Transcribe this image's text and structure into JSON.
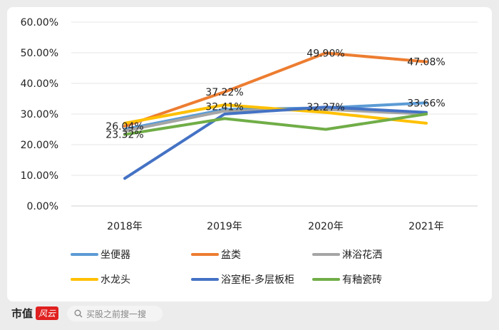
{
  "chart_data": {
    "type": "line",
    "categories": [
      "2018年",
      "2019年",
      "2020年",
      "2021年"
    ],
    "y_ticks": [
      "0.00%",
      "10.00%",
      "20.00%",
      "30.00%",
      "40.00%",
      "50.00%",
      "60.00%"
    ],
    "ylim": [
      0,
      60
    ],
    "grid": true,
    "legend_position": "bottom",
    "series": [
      {
        "name": "坐便器",
        "color": "#5b9bd5",
        "values": [
          25.0,
          31.5,
          32.0,
          33.66
        ]
      },
      {
        "name": "盆类",
        "color": "#ed7d31",
        "values": [
          26.04,
          37.22,
          49.9,
          47.08
        ]
      },
      {
        "name": "淋浴花洒",
        "color": "#a5a5a5",
        "values": [
          24.5,
          31.0,
          31.5,
          30.0
        ]
      },
      {
        "name": "水龙头",
        "color": "#ffc000",
        "values": [
          27.0,
          33.0,
          30.5,
          27.0
        ]
      },
      {
        "name": "浴室柜-多层板柜",
        "color": "#4472c4",
        "values": [
          9.0,
          30.0,
          32.27,
          30.5
        ]
      },
      {
        "name": "有釉瓷砖",
        "color": "#70ad47",
        "values": [
          23.32,
          28.5,
          25.0,
          30.0
        ]
      }
    ],
    "data_labels": [
      {
        "text": "26.04%",
        "x": "2018年",
        "y": 26.04
      },
      {
        "text": "23.32%",
        "x": "2018年",
        "y": 23.32
      },
      {
        "text": "37.22%",
        "x": "2019年",
        "y": 37.22
      },
      {
        "text": "32.41%",
        "x": "2019年",
        "y": 32.41
      },
      {
        "text": "49.90%",
        "x": "2020年",
        "y": 49.9
      },
      {
        "text": "32.27%",
        "x": "2020年",
        "y": 32.27
      },
      {
        "text": "47.08%",
        "x": "2021年",
        "y": 47.08
      },
      {
        "text": "33.66%",
        "x": "2021年",
        "y": 33.66
      }
    ]
  },
  "footer": {
    "brand": "市值",
    "brand_logo": "风云",
    "search_placeholder": "买股之前搜一搜"
  },
  "colors": {
    "background": "#ececec",
    "card": "#ffffff",
    "brand_red": "#e02020"
  },
  "icons": {
    "search": "search-icon"
  }
}
